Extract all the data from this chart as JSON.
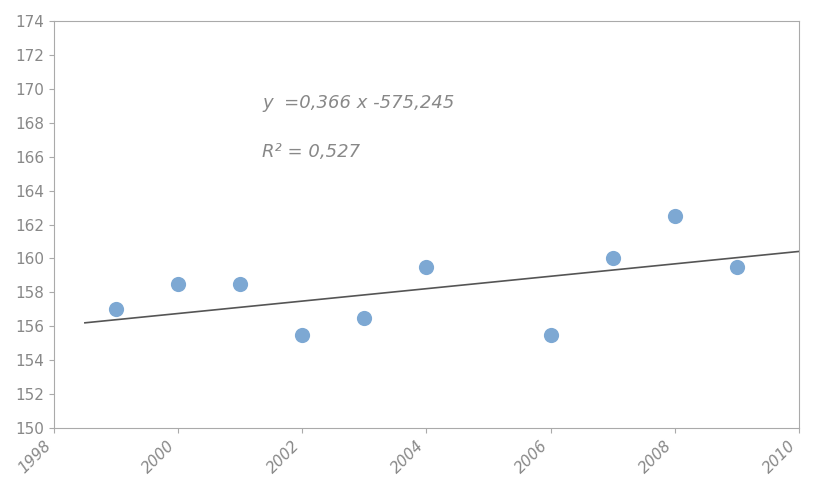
{
  "x_data": [
    1999,
    2000,
    2001,
    2002,
    2003,
    2004,
    2006,
    2007,
    2008,
    2009
  ],
  "y_data": [
    157.0,
    158.5,
    158.5,
    155.5,
    156.5,
    159.5,
    155.5,
    160.0,
    162.5,
    159.5
  ],
  "slope": 0.366,
  "intercept": -575.245,
  "r_squared": 0.527,
  "equation_text": "y  =0,366 x -575,245",
  "r2_text": "R² = 0,527",
  "xlim": [
    1998,
    2010
  ],
  "ylim": [
    150,
    174
  ],
  "ytick_min": 150,
  "ytick_max": 174,
  "ytick_step": 2,
  "xtick_values": [
    1998,
    2000,
    2002,
    2004,
    2006,
    2008,
    2010
  ],
  "dot_color": "#6699cc",
  "line_color": "#555555",
  "background_color": "#ffffff",
  "eq_fontsize": 13,
  "tick_fontsize": 11
}
